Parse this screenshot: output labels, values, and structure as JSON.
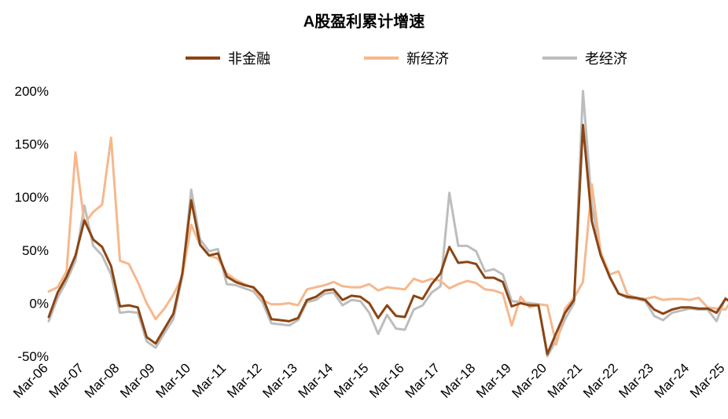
{
  "chart_data": {
    "type": "line",
    "title": "A股盈利累计增速",
    "xlabel": "",
    "ylabel": "",
    "ylim": [
      -50,
      200
    ],
    "yticks": [
      -50,
      0,
      50,
      100,
      150,
      200
    ],
    "ytick_labels": [
      "-50%",
      "0%",
      "50%",
      "100%",
      "150%",
      "200%"
    ],
    "xtick_labels": [
      "Mar-06",
      "Mar-07",
      "Mar-08",
      "Mar-09",
      "Mar-10",
      "Mar-11",
      "Mar-12",
      "Mar-13",
      "Mar-14",
      "Mar-15",
      "Mar-16",
      "Mar-17",
      "Mar-18",
      "Mar-19",
      "Mar-20",
      "Mar-21",
      "Mar-22",
      "Mar-23",
      "Mar-24",
      "Mar-25"
    ],
    "x_start": "Mar-06",
    "x_frequency": "quarterly",
    "legend_position": "top",
    "grid": false,
    "series": [
      {
        "name": "非金融",
        "color": "#8B4513",
        "values": [
          -13,
          10,
          25,
          45,
          78,
          60,
          53,
          35,
          -3,
          -2,
          -4,
          -32,
          -38,
          -24,
          -10,
          28,
          97,
          55,
          45,
          47,
          25,
          20,
          17,
          15,
          6,
          -15,
          -16,
          -17,
          -14,
          3,
          6,
          12,
          13,
          3,
          7,
          6,
          0,
          -14,
          -2,
          -12,
          -13,
          7,
          4,
          18,
          28,
          53,
          38,
          39,
          37,
          24,
          24,
          20,
          -3,
          0,
          -2,
          -2,
          -48,
          -28,
          -9,
          3,
          168,
          77,
          45,
          25,
          9,
          6,
          5,
          3,
          -6,
          -10,
          -6,
          -4,
          -4,
          -5,
          -5,
          -9,
          4,
          0
        ]
      },
      {
        "name": "新经济",
        "color": "#F5B88D",
        "values": [
          11,
          15,
          30,
          142,
          75,
          86,
          93,
          156,
          40,
          37,
          20,
          0,
          -15,
          -5,
          8,
          25,
          74,
          55,
          45,
          42,
          28,
          22,
          18,
          14,
          3,
          -1,
          -1,
          0,
          -2,
          13,
          15,
          17,
          20,
          16,
          15,
          15,
          18,
          12,
          15,
          14,
          13,
          23,
          20,
          23,
          21,
          14,
          18,
          21,
          19,
          13,
          12,
          9,
          -21,
          6,
          -4,
          -1,
          -2,
          -39,
          -5,
          5,
          20,
          112,
          48,
          27,
          30,
          8,
          5,
          4,
          6,
          3,
          4,
          4,
          3,
          5,
          -4,
          -5,
          -6,
          6,
          7
        ]
      },
      {
        "name": "老经济",
        "color": "#BDBDBD",
        "values": [
          -17,
          5,
          21,
          40,
          92,
          54,
          45,
          27,
          -9,
          -8,
          -9,
          -36,
          -42,
          -28,
          -15,
          25,
          107,
          60,
          49,
          51,
          18,
          17,
          14,
          11,
          1,
          -19,
          -20,
          -21,
          -16,
          1,
          3,
          9,
          10,
          -2,
          3,
          2,
          -9,
          -29,
          -11,
          -24,
          -25,
          -6,
          -2,
          10,
          16,
          104,
          54,
          54,
          49,
          30,
          32,
          27,
          2,
          1,
          0,
          -1,
          -55,
          -35,
          -15,
          0,
          200,
          92,
          48,
          24,
          9,
          5,
          4,
          2,
          -12,
          -16,
          -9,
          -7,
          -5,
          -6,
          -6,
          -17,
          5,
          -3
        ]
      }
    ]
  }
}
